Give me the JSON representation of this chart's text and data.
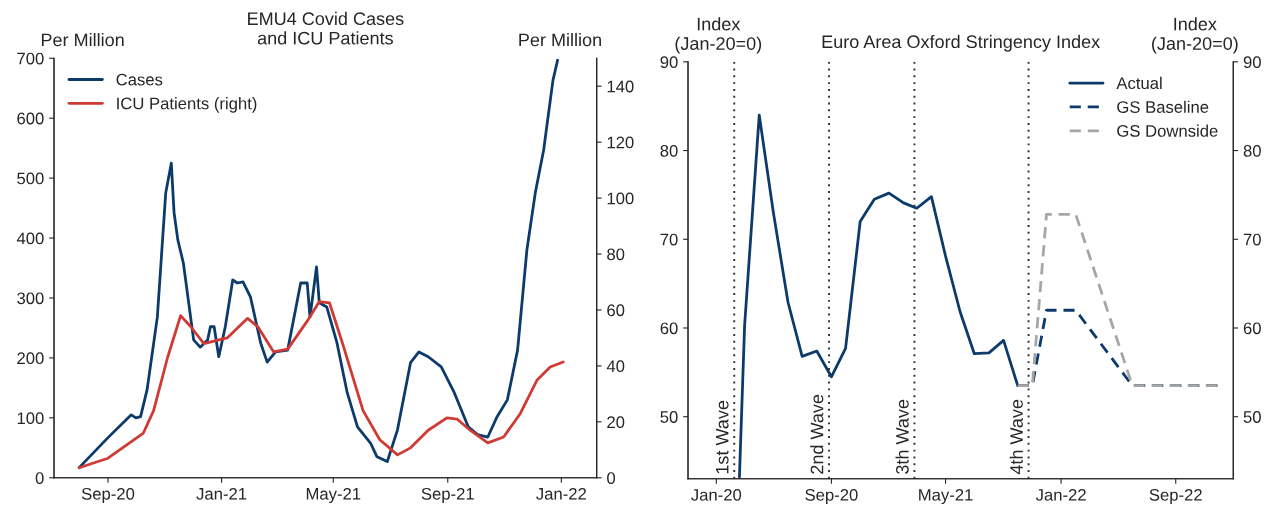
{
  "chart_data": [
    {
      "type": "line",
      "title": "EMU4 Covid Cases\nand ICU Patients",
      "ylabel": "Per Million",
      "y2label": "Per Million",
      "xlim": [
        "2020-07-05",
        "2022-02-08"
      ],
      "xticks": [
        {
          "value": "2020-09-01",
          "label": "Sep-20"
        },
        {
          "value": "2021-01-01",
          "label": "Jan-21"
        },
        {
          "value": "2021-05-01",
          "label": "May-21"
        },
        {
          "value": "2021-09-01",
          "label": "Sep-21"
        },
        {
          "value": "2022-01-01",
          "label": "Jan-22"
        }
      ],
      "ylim": [
        0,
        700
      ],
      "yticks": [
        0,
        100,
        200,
        300,
        400,
        500,
        600,
        700
      ],
      "y2lim": [
        0,
        150
      ],
      "y2ticks": [
        0,
        20,
        40,
        60,
        80,
        100,
        120,
        140
      ],
      "legend": "top left",
      "grid": false,
      "series": [
        {
          "name": "Cases",
          "color": "#0b3a6b",
          "x": [
            "2020-08-01",
            "2020-09-01",
            "2020-09-26",
            "2020-10-01",
            "2020-10-06",
            "2020-10-13",
            "2020-10-24",
            "2020-11-02",
            "2020-11-08",
            "2020-11-11",
            "2020-11-15",
            "2020-11-21",
            "2020-12-02",
            "2020-12-09",
            "2020-12-17",
            "2020-12-20",
            "2020-12-24",
            "2020-12-29",
            "2021-01-05",
            "2021-01-13",
            "2021-01-18",
            "2021-01-24",
            "2021-02-01",
            "2021-02-12",
            "2021-02-19",
            "2021-02-28",
            "2021-03-13",
            "2021-03-27",
            "2021-04-03",
            "2021-04-06",
            "2021-04-13",
            "2021-04-16",
            "2021-04-24",
            "2021-05-05",
            "2021-05-16",
            "2021-05-27",
            "2021-06-10",
            "2021-06-17",
            "2021-06-28",
            "2021-07-09",
            "2021-07-23",
            "2021-08-01",
            "2021-08-11",
            "2021-08-25",
            "2021-09-08",
            "2021-09-23",
            "2021-10-03",
            "2021-10-14",
            "2021-10-24",
            "2021-11-04",
            "2021-11-15",
            "2021-11-25",
            "2021-12-04",
            "2021-12-13",
            "2021-12-23",
            "2021-12-28"
          ],
          "values": [
            17,
            67,
            105,
            100,
            102,
            147,
            268,
            475,
            525,
            442,
            397,
            358,
            230,
            218,
            230,
            252,
            252,
            202,
            252,
            330,
            325,
            327,
            302,
            225,
            193,
            210,
            213,
            325,
            325,
            268,
            352,
            292,
            285,
            225,
            142,
            85,
            58,
            35,
            27,
            80,
            192,
            210,
            202,
            185,
            142,
            85,
            72,
            68,
            102,
            130,
            213,
            380,
            475,
            547,
            663,
            697
          ]
        },
        {
          "name": "ICU Patients (right)",
          "color": "#d03a35",
          "axis": "y2",
          "x": [
            "2020-08-01",
            "2020-09-01",
            "2020-10-09",
            "2020-10-20",
            "2020-11-04",
            "2020-11-18",
            "2020-11-29",
            "2020-12-13",
            "2021-01-07",
            "2021-01-29",
            "2021-02-09",
            "2021-02-26",
            "2021-03-13",
            "2021-04-03",
            "2021-04-16",
            "2021-04-27",
            "2021-05-11",
            "2021-06-02",
            "2021-06-20",
            "2021-07-09",
            "2021-07-23",
            "2021-08-11",
            "2021-08-31",
            "2021-09-11",
            "2021-09-25",
            "2021-10-14",
            "2021-10-31",
            "2021-11-18",
            "2021-12-06",
            "2021-12-20",
            "2022-01-03"
          ],
          "values": [
            3.6,
            7,
            16,
            24,
            43,
            58,
            54,
            48,
            50,
            57,
            54,
            45,
            46,
            56,
            63,
            62.5,
            48,
            24,
            13.6,
            8.2,
            10.7,
            17,
            21.4,
            21,
            17,
            12.5,
            14.6,
            23,
            35,
            39.6,
            41.4
          ]
        }
      ]
    },
    {
      "type": "line",
      "title": "Euro Area Oxford Stringency Index",
      "ylabel": "Index\n(Jan-20=0)",
      "y2label": "Index\n(Jan-20=0)",
      "xlim": [
        "2019-11-02",
        "2023-01-01"
      ],
      "xticks": [
        {
          "value": "2020-01-01",
          "label": "Jan-20"
        },
        {
          "value": "2020-09-01",
          "label": "Sep-20"
        },
        {
          "value": "2021-05-01",
          "label": "May-21"
        },
        {
          "value": "2022-01-01",
          "label": "Jan-22"
        },
        {
          "value": "2022-09-01",
          "label": "Sep-22"
        }
      ],
      "ylim": [
        43,
        90
      ],
      "yticks": [
        50,
        60,
        70,
        80,
        90
      ],
      "y2lim": [
        43,
        90
      ],
      "y2ticks": [
        50,
        60,
        70,
        80,
        90
      ],
      "legend": "top right",
      "grid": false,
      "ref_lines": [
        {
          "axis": "x",
          "value": "2020-02-08",
          "label": "1st Wave",
          "color": "#333333",
          "line_style": "dotted"
        },
        {
          "axis": "x",
          "value": "2020-08-27",
          "label": "2nd Wave",
          "color": "#333333",
          "line_style": "dotted"
        },
        {
          "axis": "x",
          "value": "2021-02-24",
          "label": "3th Wave",
          "color": "#333333",
          "line_style": "dotted"
        },
        {
          "axis": "x",
          "value": "2021-10-24",
          "label": "4th Wave",
          "color": "#333333",
          "line_style": "dotted"
        }
      ],
      "series": [
        {
          "name": "Actual",
          "color": "#0b3a6b",
          "line_style": "solid",
          "x": [
            "2020-02-19",
            "2020-03-01",
            "2020-04-01",
            "2020-05-01",
            "2020-06-01",
            "2020-07-01",
            "2020-08-01",
            "2020-09-01",
            "2020-10-01",
            "2020-11-01",
            "2020-12-01",
            "2021-01-01",
            "2021-02-01",
            "2021-03-01",
            "2021-04-01",
            "2021-05-01",
            "2021-06-01",
            "2021-07-01",
            "2021-08-01",
            "2021-09-01",
            "2021-10-01"
          ],
          "values": [
            43.2,
            60.3,
            84,
            73,
            62.9,
            56.8,
            57.4,
            54.5,
            57.7,
            72,
            74.5,
            75.2,
            74.1,
            73.5,
            74.8,
            68.1,
            61.8,
            57.1,
            57.2,
            58.6,
            53.5
          ]
        },
        {
          "name": "GS Baseline",
          "color": "#0b3a6b",
          "line_style": "dashed",
          "x": [
            "2021-10-01",
            "2021-11-01",
            "2021-12-01",
            "2022-01-01",
            "2022-02-01",
            "2022-06-01",
            "2022-12-01"
          ],
          "values": [
            53.5,
            53.5,
            62,
            62,
            62,
            53.5,
            53.5
          ]
        },
        {
          "name": "GS Downside",
          "color": "#a6a6a6",
          "line_style": "dashed",
          "x": [
            "2021-10-01",
            "2021-11-01",
            "2021-12-01",
            "2022-01-01",
            "2022-02-01",
            "2022-06-01",
            "2022-12-01"
          ],
          "values": [
            53.5,
            53.5,
            72.8,
            72.8,
            72.8,
            53.5,
            53.5
          ]
        }
      ]
    }
  ]
}
